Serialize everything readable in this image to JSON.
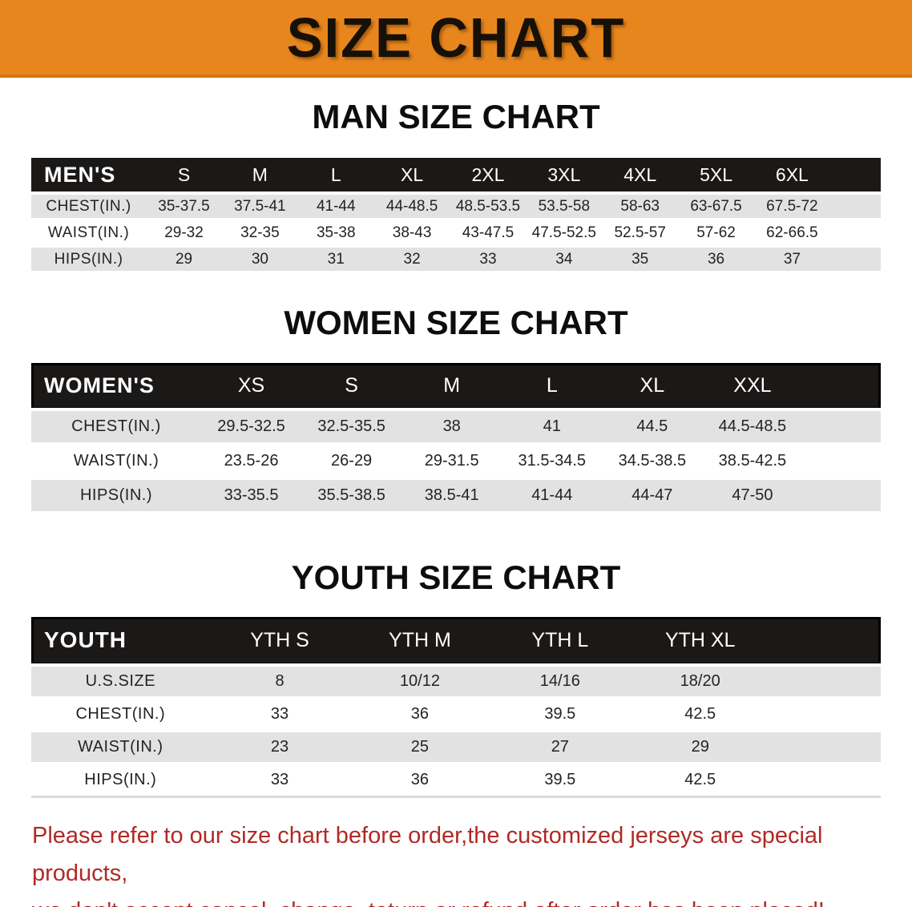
{
  "banner": {
    "title": "SIZE CHART"
  },
  "colors": {
    "banner_orange": "#E8861E",
    "header_black": "#1B1918",
    "stripe_gray": "#E2E2E2",
    "footer_red": "#B02A26"
  },
  "sections": [
    {
      "heading": "MAN SIZE CHART",
      "label": "MEN'S",
      "columns": [
        "S",
        "M",
        "L",
        "XL",
        "2XL",
        "3XL",
        "4XL",
        "5XL",
        "6XL"
      ],
      "rows": [
        {
          "label": "CHEST(IN.)",
          "values": [
            "35-37.5",
            "37.5-41",
            "41-44",
            "44-48.5",
            "48.5-53.5",
            "53.5-58",
            "58-63",
            "63-67.5",
            "67.5-72"
          ]
        },
        {
          "label": "WAIST(IN.)",
          "values": [
            "29-32",
            "32-35",
            "35-38",
            "38-43",
            "43-47.5",
            "47.5-52.5",
            "52.5-57",
            "57-62",
            "62-66.5"
          ]
        },
        {
          "label": "HIPS(IN.)",
          "values": [
            "29",
            "30",
            "31",
            "32",
            "33",
            "34",
            "35",
            "36",
            "37"
          ]
        }
      ]
    },
    {
      "heading": "WOMEN SIZE CHART",
      "label": "WOMEN'S",
      "columns": [
        "XS",
        "S",
        "M",
        "L",
        "XL",
        "XXL"
      ],
      "rows": [
        {
          "label": "CHEST(IN.)",
          "values": [
            "29.5-32.5",
            "32.5-35.5",
            "38",
            "41",
            "44.5",
            "44.5-48.5"
          ]
        },
        {
          "label": "WAIST(IN.)",
          "values": [
            "23.5-26",
            "26-29",
            "29-31.5",
            "31.5-34.5",
            "34.5-38.5",
            "38.5-42.5"
          ]
        },
        {
          "label": "HIPS(IN.)",
          "values": [
            "33-35.5",
            "35.5-38.5",
            "38.5-41",
            "41-44",
            "44-47",
            "47-50"
          ]
        }
      ]
    },
    {
      "heading": "YOUTH SIZE CHART",
      "label": "YOUTH",
      "columns": [
        "YTH S",
        "YTH M",
        "YTH L",
        "YTH XL"
      ],
      "rows": [
        {
          "label": "U.S.SIZE",
          "values": [
            "8",
            "10/12",
            "14/16",
            "18/20"
          ]
        },
        {
          "label": "CHEST(IN.)",
          "values": [
            "33",
            "36",
            "39.5",
            "42.5"
          ]
        },
        {
          "label": "WAIST(IN.)",
          "values": [
            "23",
            "25",
            "27",
            "29"
          ]
        },
        {
          "label": "HIPS(IN.)",
          "values": [
            "33",
            "36",
            "39.5",
            "42.5"
          ]
        }
      ]
    }
  ],
  "footer": {
    "line1": "Please refer to our size chart before order,the customized jerseys are special products,",
    "line2": "we don't accept cancel, change, teturn or refund after order has been placed!"
  }
}
